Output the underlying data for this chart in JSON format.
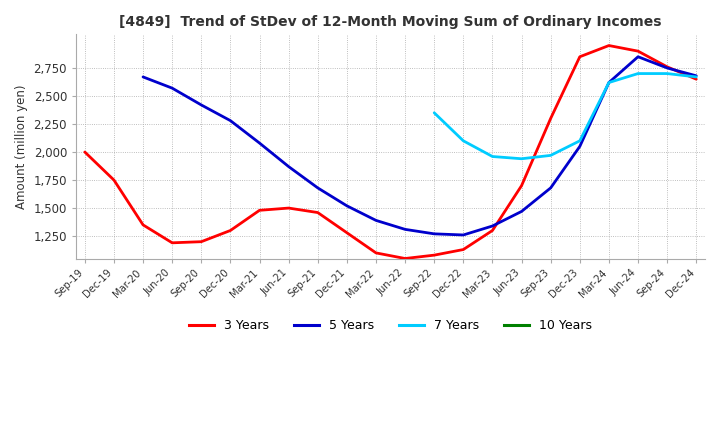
{
  "title": "[4849]  Trend of StDev of 12-Month Moving Sum of Ordinary Incomes",
  "ylabel": "Amount (million yen)",
  "background_color": "#ffffff",
  "grid_color": "#aaaaaa",
  "ylim": [
    1050,
    3050
  ],
  "yticks": [
    1250,
    1500,
    1750,
    2000,
    2250,
    2500,
    2750
  ],
  "x_labels": [
    "Sep-19",
    "Dec-19",
    "Mar-20",
    "Jun-20",
    "Sep-20",
    "Dec-20",
    "Mar-21",
    "Jun-21",
    "Sep-21",
    "Dec-21",
    "Mar-22",
    "Jun-22",
    "Sep-22",
    "Dec-22",
    "Mar-23",
    "Jun-23",
    "Sep-23",
    "Dec-23",
    "Mar-24",
    "Jun-24",
    "Sep-24",
    "Dec-24"
  ],
  "series_3yr": [
    2000,
    1750,
    1350,
    1190,
    1200,
    1300,
    1480,
    1500,
    1460,
    1280,
    1100,
    1050,
    1080,
    1130,
    1300,
    1700,
    2300,
    2850,
    2950,
    2900,
    2760,
    2650
  ],
  "series_5yr": [
    null,
    null,
    2670,
    2570,
    2420,
    2280,
    2080,
    1870,
    1680,
    1520,
    1390,
    1310,
    1270,
    1260,
    1340,
    1470,
    1680,
    2050,
    2620,
    2850,
    2750,
    2680
  ],
  "series_7yr": [
    null,
    null,
    null,
    null,
    null,
    null,
    null,
    null,
    null,
    null,
    null,
    null,
    2350,
    2100,
    1960,
    1940,
    1970,
    2100,
    2620,
    2700,
    2700,
    2670
  ],
  "series_10yr": [
    null,
    null,
    null,
    null,
    null,
    null,
    null,
    null,
    null,
    null,
    null,
    null,
    null,
    null,
    null,
    null,
    null,
    null,
    null,
    null,
    null,
    null
  ],
  "color_3yr": "#ff0000",
  "color_5yr": "#0000cc",
  "color_7yr": "#00ccff",
  "color_10yr": "#008000",
  "legend_labels": [
    "3 Years",
    "5 Years",
    "7 Years",
    "10 Years"
  ],
  "legend_colors": [
    "#ff0000",
    "#0000cc",
    "#00ccff",
    "#008000"
  ]
}
